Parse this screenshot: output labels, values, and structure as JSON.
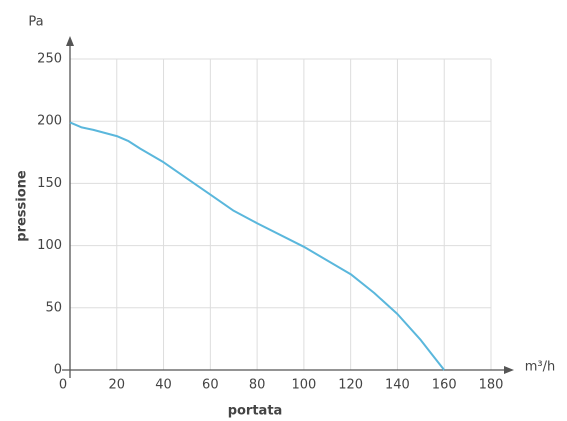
{
  "chart_data": {
    "type": "line",
    "y_unit": "Pa",
    "x_unit": "m³/h",
    "y_label": "pressione",
    "x_label": "portata",
    "x": [
      0,
      5,
      10,
      20,
      25,
      30,
      40,
      50,
      60,
      70,
      80,
      100,
      120,
      130,
      140,
      150,
      155,
      160
    ],
    "series": [
      {
        "name": "pressione",
        "color": "#5ab7dc",
        "values": [
          199,
          195,
          193,
          188,
          184,
          178,
          167,
          154,
          141,
          128,
          118,
          99,
          77,
          62,
          45,
          24,
          12,
          0
        ]
      }
    ],
    "xlim": [
      0,
      180
    ],
    "ylim": [
      0,
      250
    ],
    "xticks": [
      0,
      20,
      40,
      60,
      80,
      100,
      120,
      140,
      160,
      180
    ],
    "yticks": [
      0,
      50,
      100,
      150,
      200,
      250
    ],
    "grid": true
  }
}
